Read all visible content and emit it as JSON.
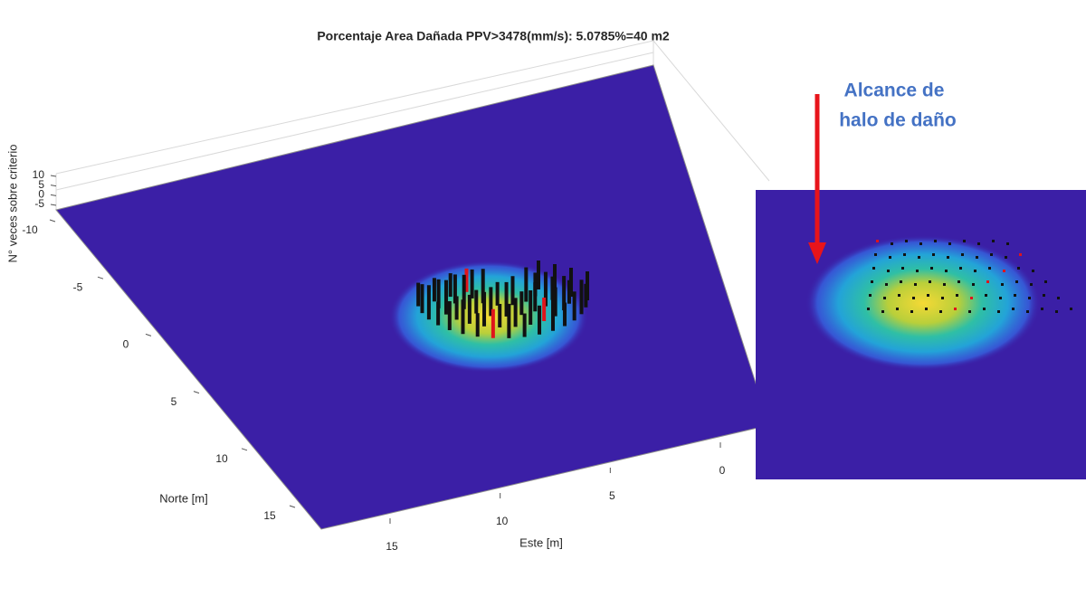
{
  "chart_data": {
    "type": "surface3d",
    "title": "Porcentaje Area Dañada PPV>3478(mm/s): 5.0785%=40 m2",
    "xlabel": "Este [m]",
    "ylabel": "Norte [m]",
    "zlabel": "N° veces sobre criterio",
    "xlim": [
      0,
      15
    ],
    "xticks": [
      0,
      5,
      10,
      15
    ],
    "ylim": [
      -10,
      15
    ],
    "yticks": [
      -10,
      -5,
      0,
      5,
      10,
      15
    ],
    "zlim": [
      -5,
      10
    ],
    "zticks": [
      -5,
      0,
      5,
      10
    ],
    "annotation": [
      "Alcance de",
      "halo de daño"
    ]
  }
}
